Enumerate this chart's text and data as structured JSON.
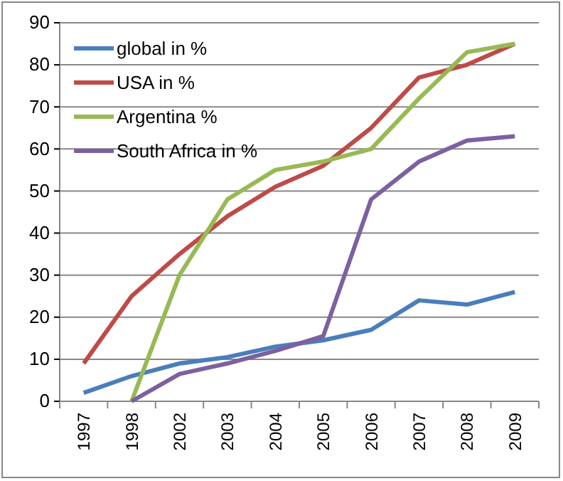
{
  "chart_data": {
    "type": "line",
    "categories": [
      "1997",
      "1998",
      "2002",
      "2003",
      "2004",
      "2005",
      "2006",
      "2007",
      "2008",
      "2009"
    ],
    "series": [
      {
        "name": "global in %",
        "color": "#4a7ebb",
        "values": [
          2,
          6,
          9,
          10.5,
          13,
          14.5,
          17,
          24,
          23,
          26
        ]
      },
      {
        "name": "USA in %",
        "color": "#be4b48",
        "values": [
          9,
          25,
          35,
          44,
          51,
          56,
          65,
          77,
          80,
          85
        ]
      },
      {
        "name": "Argentina %",
        "color": "#98b954",
        "values": [
          null,
          0,
          30,
          48,
          55,
          57,
          60,
          72,
          83,
          85
        ]
      },
      {
        "name": "South Africa in %",
        "color": "#7d60a0",
        "values": [
          null,
          0,
          6.5,
          9,
          12,
          15.5,
          48,
          57,
          62,
          63
        ]
      }
    ],
    "ylim": [
      0,
      90
    ],
    "yticks": [
      0,
      10,
      20,
      30,
      40,
      50,
      60,
      70,
      80,
      90
    ],
    "grid": "y",
    "legend": "top left",
    "marker": "none",
    "line_style": "solid"
  }
}
